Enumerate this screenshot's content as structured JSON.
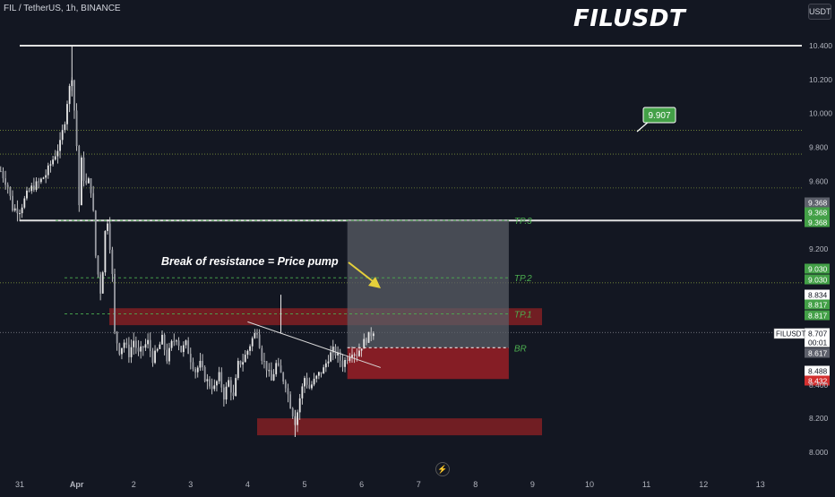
{
  "header": {
    "symbol_line": "FIL / TetherUS, 1h, BINANCE",
    "title": "FILUSDT",
    "currency_button": "USDT"
  },
  "colors": {
    "background": "#131722",
    "candle": "#e8e8e8",
    "supply_zone": "#7a1f24",
    "target_box": "#5a5d66",
    "stop_box": "#8b1e26",
    "tp_line": "#4caf50",
    "label_green": "#43a047",
    "label_red": "#d32f2f",
    "label_gray": "#5d606b",
    "annotation_arrow": "#e5d03a"
  },
  "chart_data": {
    "type": "candlestick",
    "yscale": "linear",
    "ylim": [
      7.94,
      10.46
    ],
    "y_ticks": [
      "10.400",
      "10.200",
      "10.000",
      "9.800",
      "9.600",
      "9.200",
      "8.200",
      "8.000"
    ],
    "x_ticks": [
      {
        "label": "31",
        "t": 0
      },
      {
        "label": "Apr",
        "t": 24
      },
      {
        "label": "2",
        "t": 48
      },
      {
        "label": "3",
        "t": 72
      },
      {
        "label": "4",
        "t": 96
      },
      {
        "label": "5",
        "t": 120
      },
      {
        "label": "6",
        "t": 144
      },
      {
        "label": "7",
        "t": 168
      },
      {
        "label": "8",
        "t": 192
      },
      {
        "label": "9",
        "t": 216
      },
      {
        "label": "10",
        "t": 240
      },
      {
        "label": "11",
        "t": 264
      },
      {
        "label": "12",
        "t": 288
      },
      {
        "label": "13",
        "t": 312
      }
    ],
    "close_path": [
      [
        -8,
        9.66
      ],
      [
        -5,
        9.57
      ],
      [
        -3,
        9.44
      ],
      [
        0,
        9.43
      ],
      [
        3,
        9.52
      ],
      [
        5,
        9.56
      ],
      [
        8,
        9.59
      ],
      [
        11,
        9.64
      ],
      [
        14,
        9.73
      ],
      [
        17,
        9.82
      ],
      [
        19,
        9.96
      ],
      [
        20,
        10.07
      ],
      [
        21,
        10.15
      ],
      [
        22,
        10.22
      ],
      [
        22.5,
        10.13
      ],
      [
        23,
        10.02
      ],
      [
        24,
        9.81
      ],
      [
        25,
        9.46
      ],
      [
        26,
        9.72
      ],
      [
        27,
        9.62
      ],
      [
        28,
        9.58
      ],
      [
        29,
        9.6
      ],
      [
        30,
        9.55
      ],
      [
        31,
        9.41
      ],
      [
        32,
        9.16
      ],
      [
        33,
        9.05
      ],
      [
        34,
        8.95
      ],
      [
        35,
        9.08
      ],
      [
        36,
        9.3
      ],
      [
        37,
        9.37
      ],
      [
        38,
        9.22
      ],
      [
        39,
        9.04
      ],
      [
        40,
        8.7
      ],
      [
        42,
        8.6
      ],
      [
        44,
        8.65
      ],
      [
        46,
        8.58
      ],
      [
        48,
        8.66
      ],
      [
        50,
        8.58
      ],
      [
        52,
        8.62
      ],
      [
        54,
        8.65
      ],
      [
        56,
        8.55
      ],
      [
        58,
        8.6
      ],
      [
        60,
        8.67
      ],
      [
        62,
        8.55
      ],
      [
        64,
        8.64
      ],
      [
        66,
        8.68
      ],
      [
        68,
        8.6
      ],
      [
        70,
        8.64
      ],
      [
        72,
        8.55
      ],
      [
        74,
        8.48
      ],
      [
        76,
        8.52
      ],
      [
        78,
        8.44
      ],
      [
        80,
        8.4
      ],
      [
        82,
        8.38
      ],
      [
        84,
        8.45
      ],
      [
        86,
        8.33
      ],
      [
        88,
        8.42
      ],
      [
        90,
        8.32
      ],
      [
        92,
        8.52
      ],
      [
        94,
        8.54
      ],
      [
        96,
        8.6
      ],
      [
        98,
        8.67
      ],
      [
        100,
        8.72
      ],
      [
        102,
        8.56
      ],
      [
        104,
        8.5
      ],
      [
        106,
        8.42
      ],
      [
        108,
        8.52
      ],
      [
        110,
        8.46
      ],
      [
        112,
        8.4
      ],
      [
        114,
        8.28
      ],
      [
        116,
        8.18
      ],
      [
        117,
        8.24
      ],
      [
        118,
        8.32
      ],
      [
        120,
        8.44
      ],
      [
        122,
        8.38
      ],
      [
        124,
        8.42
      ],
      [
        126,
        8.46
      ],
      [
        128,
        8.49
      ],
      [
        130,
        8.56
      ],
      [
        132,
        8.6
      ],
      [
        134,
        8.57
      ],
      [
        136,
        8.52
      ],
      [
        138,
        8.56
      ],
      [
        140,
        8.6
      ],
      [
        142,
        8.58
      ],
      [
        144,
        8.63
      ],
      [
        146,
        8.67
      ],
      [
        148,
        8.7
      ],
      [
        149,
        8.72
      ]
    ],
    "horizontal_levels": [
      {
        "price": 10.4,
        "style": "solid"
      },
      {
        "price": 9.368,
        "style": "solid"
      },
      {
        "price": 9.9,
        "style": "dotted"
      },
      {
        "price": 9.76,
        "style": "dotted"
      },
      {
        "price": 9.56,
        "style": "dotted"
      },
      {
        "price": 9.0,
        "style": "dotted"
      },
      {
        "price": 8.707,
        "style": "dotted"
      }
    ],
    "supply_zones": [
      {
        "t0": 40,
        "t1": 220,
        "p_top": 8.85,
        "p_bottom": 8.75
      },
      {
        "t0": 100,
        "t1": 220,
        "p_top": 8.2,
        "p_bottom": 8.1
      }
    ],
    "trade": {
      "t0": 138,
      "t1": 206,
      "targets": [
        {
          "label": "TP.3",
          "price": 9.368
        },
        {
          "label": "TP.2",
          "price": 9.03
        },
        {
          "label": "TP.1",
          "price": 8.817
        }
      ],
      "entry": {
        "label": "BR",
        "price": 8.617
      },
      "stop": 8.432
    },
    "trendline": {
      "from": [
        96,
        8.77
      ],
      "to": [
        152,
        8.5
      ]
    },
    "annotations": {
      "text": "Break of resistance = Price pump",
      "target_label_value": "9.907"
    },
    "price_labels": [
      {
        "text": "9.368",
        "bg": "gray"
      },
      {
        "text": "9.368",
        "bg": "green"
      },
      {
        "text": "9.368",
        "bg": "green"
      },
      {
        "text": "9.030",
        "bg": "green"
      },
      {
        "text": "9.030",
        "bg": "green"
      },
      {
        "text": "8.834",
        "bg": "white"
      },
      {
        "text": "8.817",
        "bg": "green"
      },
      {
        "text": "8.817",
        "bg": "green"
      },
      {
        "text": "8.707",
        "bg": "white"
      },
      {
        "text": "00:01",
        "bg": "white"
      },
      {
        "text": "8.617",
        "bg": "gray"
      },
      {
        "text": "8.488",
        "bg": "white"
      },
      {
        "text": "8.432",
        "bg": "red"
      },
      {
        "text": "8.400",
        "bg": "none"
      }
    ],
    "current_price_tag": "FILUSDT"
  }
}
